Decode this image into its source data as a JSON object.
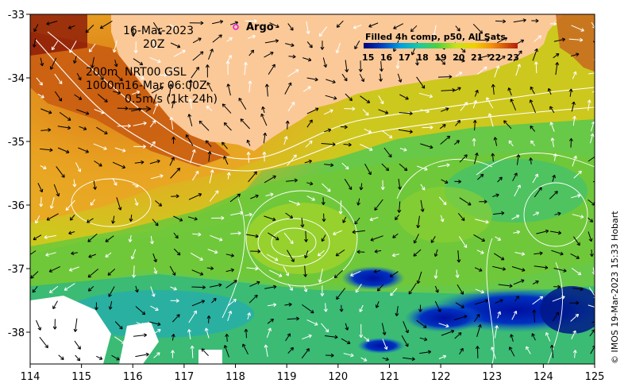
{
  "map": {
    "date": "16-Mar-2023",
    "time": "20Z",
    "legend_marker_label": "Argo",
    "depth_200": "200m",
    "depth_1000": "1000m",
    "current_source": "NRT00 GSL",
    "current_time": "16-Mar 06:00Z",
    "vector_scale": "0.5m/s (1kt 24h)",
    "credit": "© IMOS 19-Mar-2023 15:33 Hobart",
    "colorbar": {
      "title": "Filled 4h comp, p50, All Sats",
      "ticks": [
        "15",
        "16",
        "17",
        "18",
        "19",
        "20",
        "21",
        "22",
        "23"
      ],
      "min": 15,
      "max": 23.5
    },
    "axes": {
      "x_ticks": [
        "114",
        "115",
        "116",
        "117",
        "118",
        "119",
        "120",
        "121",
        "122",
        "123",
        "124",
        "125"
      ],
      "y_ticks": [
        "-33",
        "-34",
        "-35",
        "-36",
        "-37",
        "-38"
      ],
      "lon_range": [
        114,
        125
      ],
      "lat_range": [
        -38.5,
        -33
      ]
    },
    "colors": {
      "land": "#fbc998",
      "missing": "#ffffff",
      "argo_marker": "#e020e0",
      "contour": "#ffffff",
      "arrows_shallow": "#000000",
      "arrows_deep": "#ffffff"
    }
  }
}
